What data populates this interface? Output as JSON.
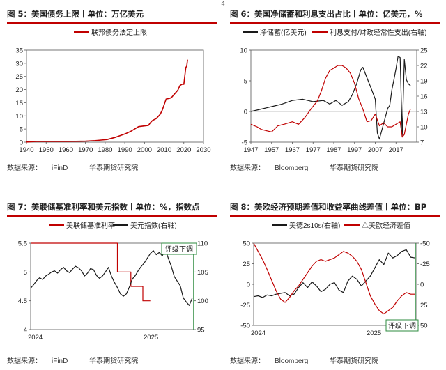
{
  "page_number": "4",
  "source_prefix": "数据来源：",
  "publisher": "华泰期货研究院",
  "figures": [
    {
      "title": "图 5：美国债务上限丨单位：万亿美元",
      "source": "iFinD",
      "chart_data": {
        "type": "line",
        "series": [
          {
            "name": "联邦债务法定上限",
            "color": "#c00000",
            "x": [
              1940,
              1945,
              1950,
              1955,
              1960,
              1965,
              1970,
              1975,
              1978,
              1981,
              1983,
              1985,
              1987,
              1990,
              1993,
              1997,
              2002,
              2003,
              2004,
              2006,
              2008,
              2009,
              2010,
              2011,
              2013,
              2014,
              2015,
              2017,
              2018,
              2019,
              2020,
              2021,
              2021.5,
              2021.9
            ],
            "y": [
              0.05,
              0.3,
              0.28,
              0.28,
              0.29,
              0.32,
              0.38,
              0.58,
              0.8,
              1.0,
              1.4,
              1.8,
              2.3,
              3.1,
              4.1,
              5.9,
              6.4,
              7.4,
              8.2,
              9.0,
              10.6,
              12.1,
              14.3,
              16.4,
              16.7,
              17.2,
              18.1,
              19.8,
              21.5,
              22.0,
              22.0,
              28.4,
              28.9,
              31.4
            ]
          }
        ],
        "xlim": [
          1940,
          2030
        ],
        "ylim": [
          0,
          35
        ],
        "xticks": [
          1940,
          1950,
          1960,
          1970,
          1980,
          1990,
          2000,
          2010,
          2020,
          2030
        ],
        "yticks": [
          0,
          5,
          10,
          15,
          20,
          25,
          30,
          35
        ]
      }
    },
    {
      "title": "图 6：美国净储蓄和利息支出占比丨单位：亿美元，%",
      "source": "Bloomberg",
      "chart_data": {
        "type": "line",
        "series": [
          {
            "name": "净储蓄(亿美元)",
            "color": "#1a1a1a",
            "axis": "left",
            "x": [
              1947,
              1952,
              1957,
              1962,
              1967,
              1972,
              1977,
              1982,
              1985,
              1988,
              1991,
              1994,
              1996,
              1998,
              2000,
              2001,
              2003,
              2005,
              2007,
              2008,
              2009,
              2011,
              2013,
              2014,
              2015,
              2016,
              2017,
              2018,
              2019,
              2020,
              2021,
              2022,
              2023,
              2024
            ],
            "y": [
              0,
              0.4,
              0.8,
              1.2,
              1.8,
              2.0,
              1.6,
              1.8,
              1.2,
              1.8,
              1.0,
              1.6,
              2.8,
              4.5,
              6.8,
              7.2,
              5.5,
              3.8,
              2.0,
              -3.5,
              -4.5,
              -2.0,
              0.5,
              1.0,
              3.5,
              5.2,
              7.0,
              9.0,
              8.8,
              -4.0,
              8.5,
              5.2,
              4.5,
              4.2
            ]
          },
          {
            "name": "利息支付/财政经常性支出(右轴)",
            "color": "#c00000",
            "axis": "right",
            "x": [
              1947,
              1950,
              1952,
              1955,
              1957,
              1960,
              1963,
              1967,
              1970,
              1973,
              1976,
              1979,
              1981,
              1983,
              1985,
              1987,
              1989,
              1991,
              1993,
              1995,
              1997,
              1999,
              2001,
              2003,
              2005,
              2007,
              2009,
              2011,
              2013,
              2015,
              2017,
              2019,
              2020,
              2021,
              2022,
              2023,
              2024
            ],
            "y": [
              10.5,
              10.0,
              9.5,
              9.2,
              9.0,
              10.2,
              10.5,
              11.0,
              10.5,
              11.8,
              13.5,
              15.0,
              17.0,
              19.5,
              21.0,
              21.5,
              22.0,
              22.0,
              21.5,
              20.5,
              18.5,
              15.5,
              13.5,
              11.0,
              11.2,
              12.5,
              10.2,
              10.8,
              10.0,
              10.0,
              10.5,
              11.0,
              8.0,
              8.5,
              10.5,
              12.5,
              13.5
            ]
          }
        ],
        "xlim": [
          1947,
          2027
        ],
        "ylim": [
          -5,
          10
        ],
        "y2lim": [
          7,
          25
        ],
        "xticks": [
          1947,
          1957,
          1967,
          1977,
          1987,
          1997,
          2007,
          2017
        ],
        "yticks": [
          -5,
          0,
          5,
          10
        ],
        "y2ticks": [
          7,
          10,
          13,
          16,
          19,
          22,
          25
        ]
      }
    },
    {
      "title": "图 7：美联储基准利率和美元指数丨单位：%，指数点",
      "source": "iFinD",
      "annotation": "评级下调",
      "chart_data": {
        "type": "line",
        "series": [
          {
            "name": "美联储基准利率",
            "color": "#c00000",
            "axis": "left",
            "step": true,
            "x": [
              0,
              290,
              290,
              335,
              335,
              375,
              375,
              400
            ],
            "y": [
              5.5,
              5.5,
              5.0,
              5.0,
              4.75,
              4.75,
              4.5,
              4.5
            ]
          },
          {
            "name": "美元指数(右轴)",
            "color": "#1a1a1a",
            "axis": "right",
            "x": [
              0,
              10,
              20,
              30,
              40,
              50,
              60,
              70,
              80,
              90,
              100,
              110,
              120,
              130,
              140,
              150,
              160,
              170,
              180,
              190,
              200,
              210,
              220,
              230,
              240,
              250,
              260,
              270,
              280,
              290,
              300,
              310,
              320,
              330,
              340,
              350,
              360,
              370,
              380,
              390,
              400,
              410,
              420,
              430,
              440,
              450,
              460,
              470,
              480,
              490,
              500,
              510,
              520,
              530,
              540
            ],
            "y": [
              102.2,
              102.8,
              103.5,
              104.0,
              103.7,
              104.3,
              104.6,
              105.0,
              105.2,
              104.8,
              105.4,
              105.8,
              105.2,
              104.9,
              105.5,
              106.0,
              105.7,
              105.2,
              104.3,
              104.8,
              105.6,
              105.4,
              104.4,
              103.9,
              104.3,
              105.0,
              105.8,
              104.3,
              103.2,
              102.3,
              101.2,
              100.8,
              101.2,
              102.4,
              103.8,
              104.4,
              105.3,
              106.0,
              106.6,
              107.4,
              108.2,
              108.7,
              108.0,
              108.4,
              107.8,
              108.9,
              107.4,
              106.0,
              104.2,
              103.4,
              102.6,
              100.5,
              99.8,
              99.2,
              100.5
            ]
          }
        ],
        "xlim": [
          0,
          545
        ],
        "ylim": [
          4.0,
          5.5
        ],
        "y2lim": [
          95,
          110
        ],
        "xtick_labels": [
          "2024",
          "2025"
        ],
        "yticks": [
          4.0,
          4.5,
          5.0,
          5.5
        ],
        "y2ticks": [
          95,
          100,
          105,
          110
        ]
      }
    },
    {
      "title": "图 8：美欧经济预期差值和收益率曲线差值丨单位：BP",
      "source": "Bloomberg",
      "annotation": "评级下调",
      "chart_data": {
        "type": "line",
        "series": [
          {
            "name": "美德2s10s(右轴)",
            "color": "#1a1a1a",
            "axis": "right",
            "x": [
              0,
              15,
              30,
              45,
              60,
              75,
              90,
              105,
              120,
              135,
              150,
              165,
              180,
              195,
              210,
              225,
              240,
              255,
              270,
              285,
              300,
              315,
              330,
              345,
              360,
              375,
              390,
              405,
              420,
              435,
              450,
              465,
              480,
              495,
              510,
              525,
              540
            ],
            "y": [
              15,
              14,
              16,
              13,
              14,
              12,
              11,
              10,
              14,
              12,
              4,
              -2,
              4,
              -3,
              2,
              9,
              6,
              0,
              -2,
              7,
              10,
              -4,
              -10,
              -6,
              2,
              -4,
              -10,
              -20,
              -30,
              -24,
              -38,
              -32,
              -35,
              -40,
              -42,
              -33,
              -32
            ]
          },
          {
            "name": "△美欧经济差值",
            "color": "#c00000",
            "axis": "left",
            "x": [
              0,
              15,
              30,
              45,
              60,
              75,
              90,
              105,
              120,
              135,
              150,
              165,
              180,
              195,
              210,
              225,
              240,
              255,
              270,
              285,
              300,
              315,
              330,
              345,
              360,
              375,
              390,
              405,
              420,
              435,
              450,
              465,
              480,
              495,
              510,
              525,
              540
            ],
            "y": [
              50,
              40,
              30,
              18,
              5,
              -8,
              -18,
              -22,
              -16,
              -8,
              -2,
              6,
              14,
              22,
              28,
              30,
              28,
              30,
              32,
              36,
              40,
              38,
              34,
              28,
              18,
              2,
              -14,
              -24,
              -32,
              -36,
              -32,
              -28,
              -20,
              -14,
              -10,
              -12,
              -12
            ]
          }
        ],
        "xlim": [
          0,
          545
        ],
        "ylim": [
          -50,
          50
        ],
        "y2lim": [
          -50,
          50
        ],
        "y2_inverted": true,
        "xtick_labels": [
          "2024",
          "2025"
        ],
        "yticks": [
          -50,
          -25,
          0,
          25,
          50
        ],
        "y2ticks": [
          -50,
          -25,
          0,
          25,
          50
        ]
      }
    }
  ]
}
